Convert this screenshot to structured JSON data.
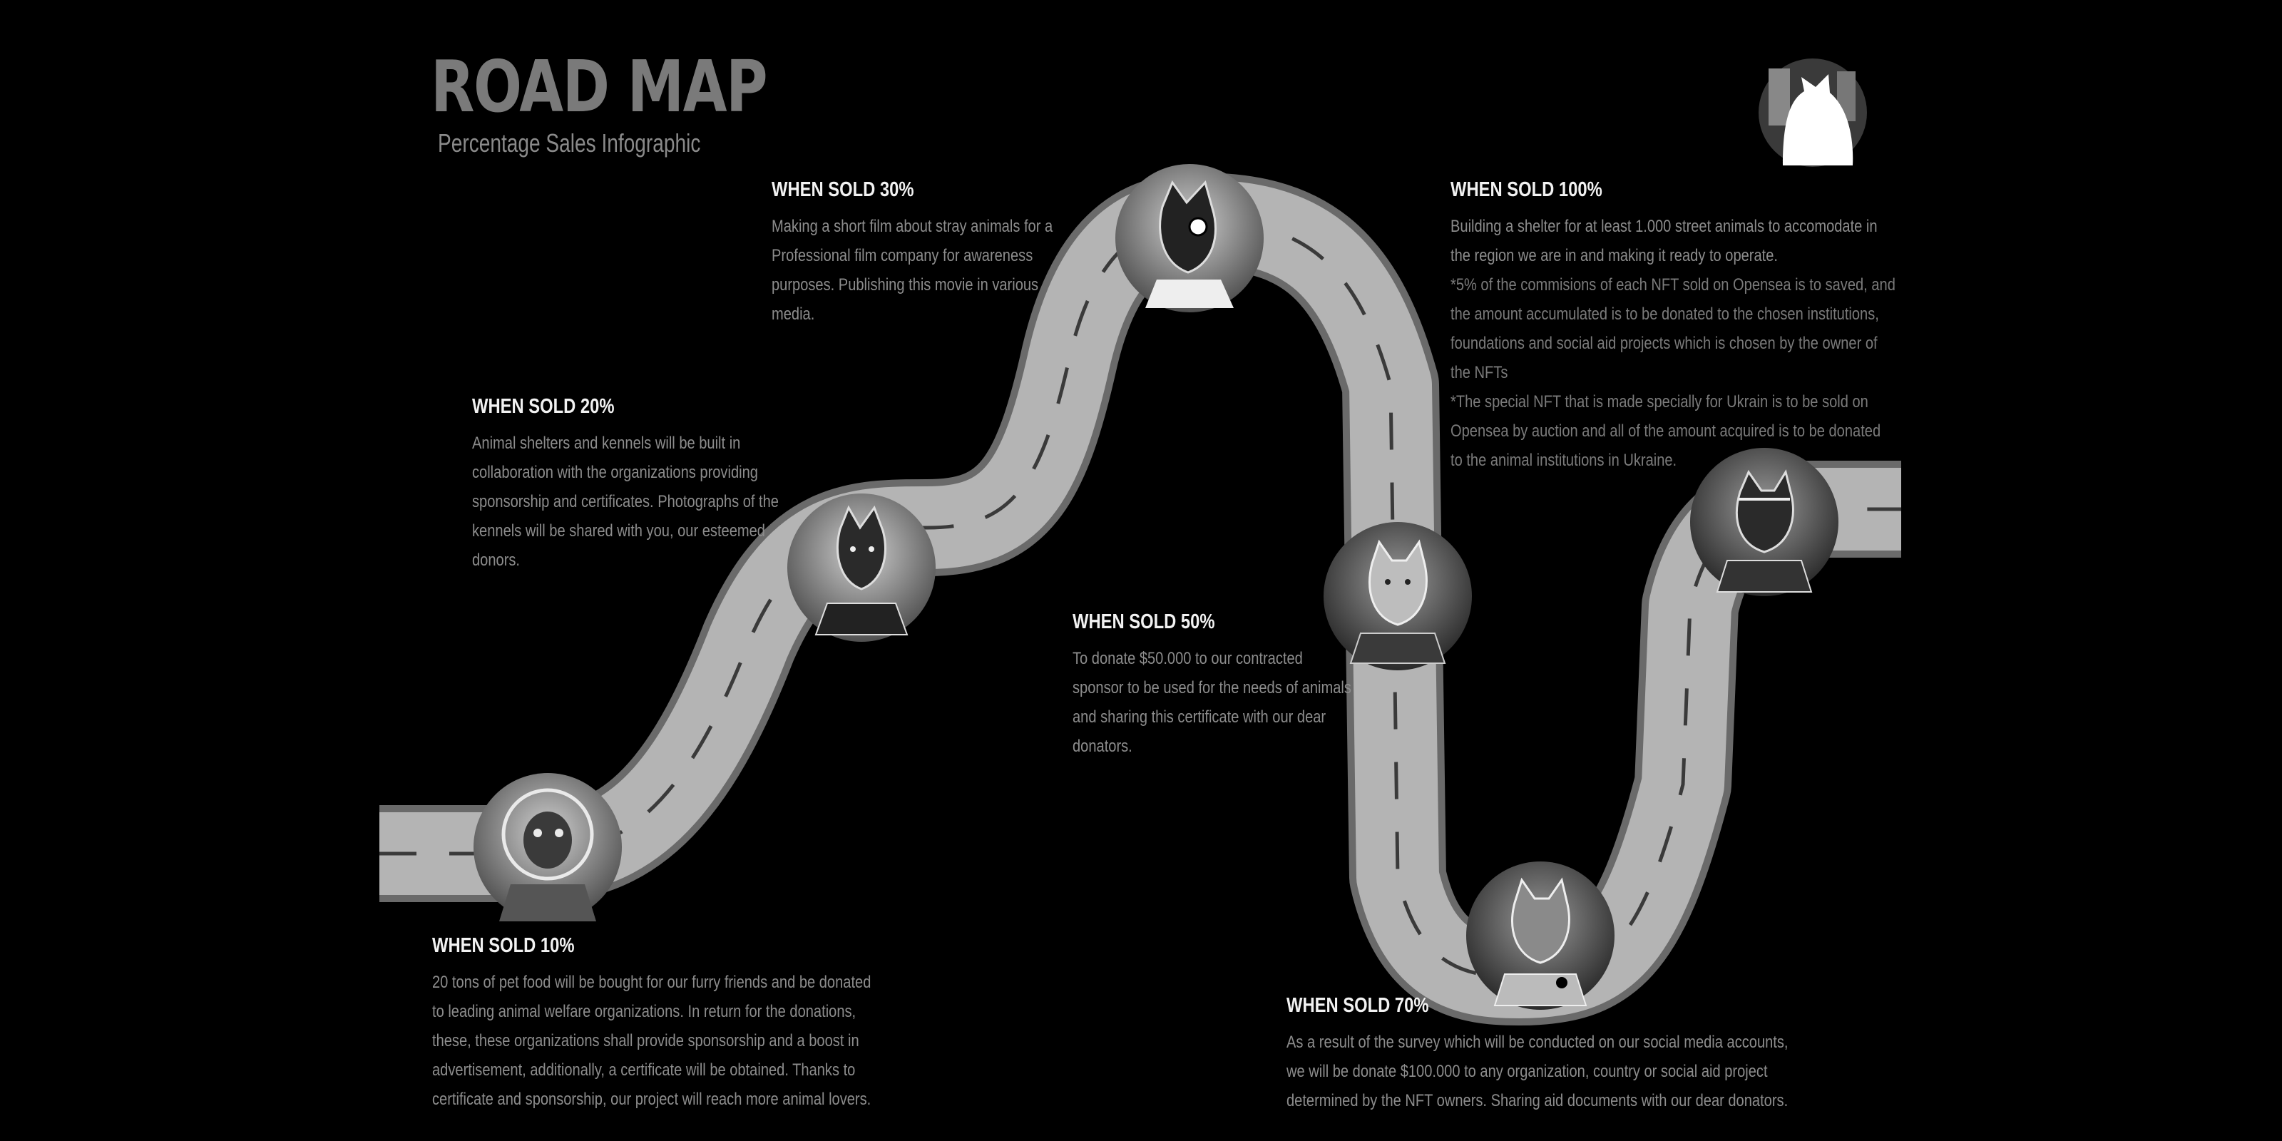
{
  "header": {
    "title": "ROAD MAP",
    "subtitle": "Percentage Sales Infographic"
  },
  "milestones": [
    {
      "heading": "WHEN SOLD 10%",
      "text": "20 tons of pet food will be bought for our furry friends and be donated\nto leading animal welfare organizations. In return for the donations,\nthese, these organizations shall provide sponsorship and a boost in\nadvertisement, additionally, a certificate will be obtained. Thanks to\ncertificate and sponsorship, our project will reach more animal lovers."
    },
    {
      "heading": "WHEN SOLD 20%",
      "text": "Animal shelters and kennels will be built in\ncollaboration with the organizations providing\nsponsorship and certificates. Photographs of the\nkennels will be shared with you, our esteemed\ndonors."
    },
    {
      "heading": "WHEN SOLD 30%",
      "text": "Making a short film about stray animals for a\nProfessional film company for awareness\npurposes. Publishing this movie in various\nmedia."
    },
    {
      "heading": "WHEN SOLD 50%",
      "text": "To donate $50.000 to our contracted\nsponsor to be used for the needs of animals\nand sharing this certificate with our dear\ndonators."
    },
    {
      "heading": "WHEN SOLD 70%",
      "text": "As a result of the survey which will be conducted on our social media accounts,\nwe will be donate $100.000 to any organization, country or social aid  project\ndetermined by the NFT owners. Sharing aid documents with our dear donators."
    },
    {
      "heading": "WHEN SOLD 100%",
      "text": "Building a shelter for at least 1.000 street animals to accomodate in\nthe region we are in and making it ready to operate.",
      "note1": "*5% of the commisions of each NFT sold on Opensea is to saved, and\nthe amount accumulated is to be donated to the chosen institutions,\nfoundations and social aid projects which is chosen by the owner of\nthe NFTs",
      "note2": "*The special NFT that is made specially for Ukrain is to be sold on\nOpensea by auction and all of the amount acquired is to be donated\nto the animal institutions in Ukraine."
    }
  ],
  "avatars": [
    "astronaut-dog-avatar",
    "dog-avatar-2",
    "dog-avatar-3",
    "dog-avatar-4",
    "dog-avatar-5",
    "dog-avatar-6",
    "logo-dog-avatar"
  ],
  "colors": {
    "background": "#000000",
    "road_edge": "#6a6a6a",
    "road_surface": "#b4b4b4",
    "lane_marking": "#3a3a3a",
    "heading": "#f2f2f2",
    "body_text": "#8c8c8c"
  }
}
